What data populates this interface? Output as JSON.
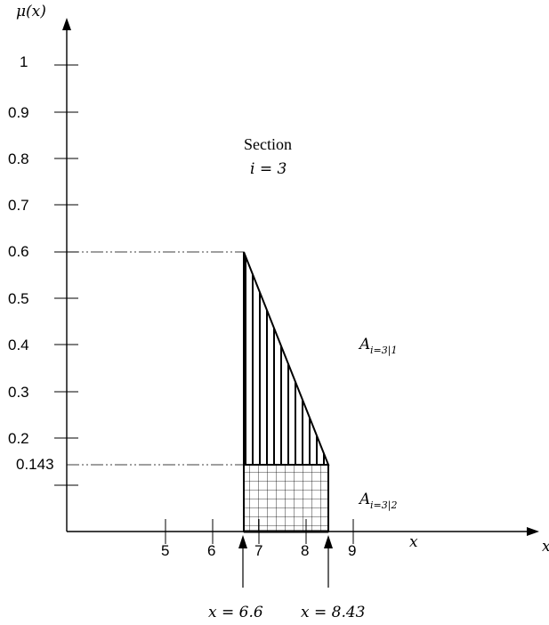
{
  "axes": {
    "y_label": "μ(x)",
    "x_label": "x",
    "y_ticks": [
      "1",
      "0.9",
      "0.8",
      "0.7",
      "0.6",
      "0.5",
      "0.4",
      "0.3",
      "0.2",
      "0.143"
    ],
    "x_ticks": [
      "5",
      "6",
      "7",
      "8",
      "9"
    ]
  },
  "section": {
    "title": "Section",
    "index": "i = 3"
  },
  "areas": {
    "upper": {
      "symbol": "A",
      "subscript": "i=3|1"
    },
    "lower": {
      "symbol": "A",
      "subscript": "i=3|2"
    }
  },
  "markers": {
    "left": "x = 6.6",
    "right": "x = 8.43"
  },
  "values": {
    "x_start": 6.6,
    "x_end": 8.43,
    "mu_peak": 0.6,
    "mu_cut": 0.143
  }
}
